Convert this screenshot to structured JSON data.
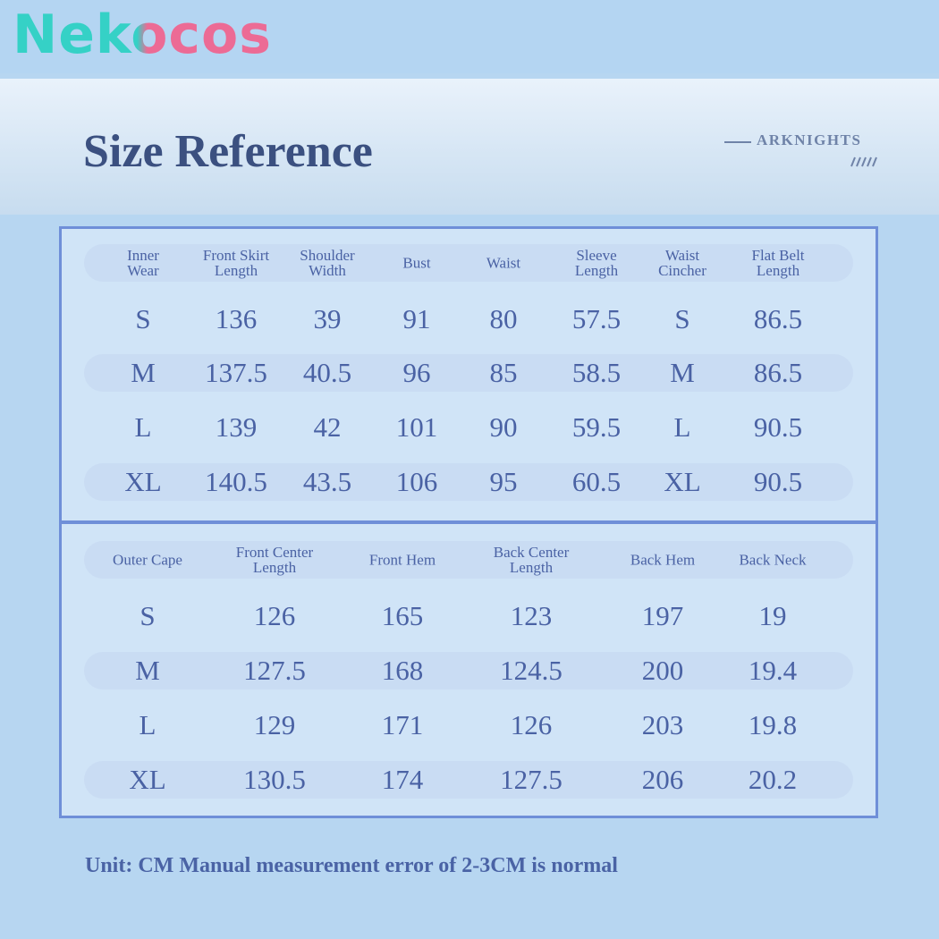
{
  "brand": "Nekocos",
  "title": "Size Reference",
  "tag": "ARKNIGHTS",
  "table1": {
    "header": [
      "Inner Wear",
      "Front Skirt Length",
      "Shoulder Width",
      "Bust",
      "Waist",
      "Sleeve Length",
      "Waist Cincher",
      "Flat Belt Length"
    ],
    "rows": [
      [
        "S",
        "136",
        "39",
        "91",
        "80",
        "57.5",
        "S",
        "86.5"
      ],
      [
        "M",
        "137.5",
        "40.5",
        "96",
        "85",
        "58.5",
        "M",
        "86.5"
      ],
      [
        "L",
        "139",
        "42",
        "101",
        "90",
        "59.5",
        "L",
        "90.5"
      ],
      [
        "XL",
        "140.5",
        "43.5",
        "106",
        "95",
        "60.5",
        "XL",
        "90.5"
      ]
    ]
  },
  "table2": {
    "header": [
      "Outer Cape",
      "Front Center Length",
      "Front Hem",
      "Back Center Length",
      "Back Hem",
      "Back Neck"
    ],
    "rows": [
      [
        "S",
        "126",
        "165",
        "123",
        "197",
        "19"
      ],
      [
        "M",
        "127.5",
        "168",
        "124.5",
        "200",
        "19.4"
      ],
      [
        "L",
        "129",
        "171",
        "126",
        "203",
        "19.8"
      ],
      [
        "XL",
        "130.5",
        "174",
        "127.5",
        "206",
        "20.2"
      ]
    ]
  },
  "footer": "Unit: CM Manual measurement error of 2-3CM is normal"
}
